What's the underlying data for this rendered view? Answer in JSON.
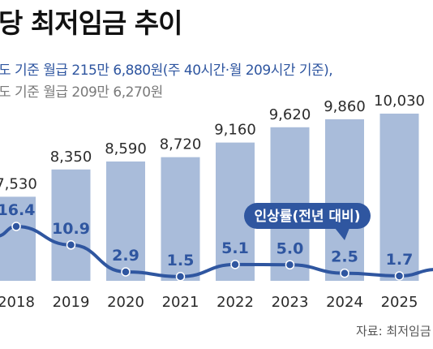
{
  "header": {
    "title": "당 최저임금 추이",
    "note_1": "도 기준 월급 215만 6,880원(주 40시간·월 209시간 기준),",
    "note_2": "도 기준 월급 209만 6,270원"
  },
  "source": "자료: 최저임금",
  "colors": {
    "bar": "#a9bcda",
    "line": "#2f56a0",
    "badge": "#2f56a0"
  },
  "chart_data": {
    "type": "bar",
    "categories": [
      "2018",
      "2019",
      "2020",
      "2021",
      "2022",
      "2023",
      "2024",
      "2025"
    ],
    "series": [
      {
        "values": [
          7530,
          8350,
          8590,
          8720,
          9160,
          9620,
          9860,
          10030
        ],
        "labels": [
          "7,530",
          "8,350",
          "8,590",
          "8,720",
          "9,160",
          "9,620",
          "9,860",
          "10,030"
        ]
      },
      {
        "name": "인상률(전년 대비)",
        "type": "line",
        "values": [
          16.4,
          10.9,
          2.9,
          1.5,
          5.1,
          5.0,
          2.5,
          1.7
        ],
        "labels": [
          "16.4",
          "10.9",
          "2.9",
          "1.5",
          "5.1",
          "5.0",
          "2.5",
          "1.7"
        ]
      }
    ],
    "grid": false
  }
}
